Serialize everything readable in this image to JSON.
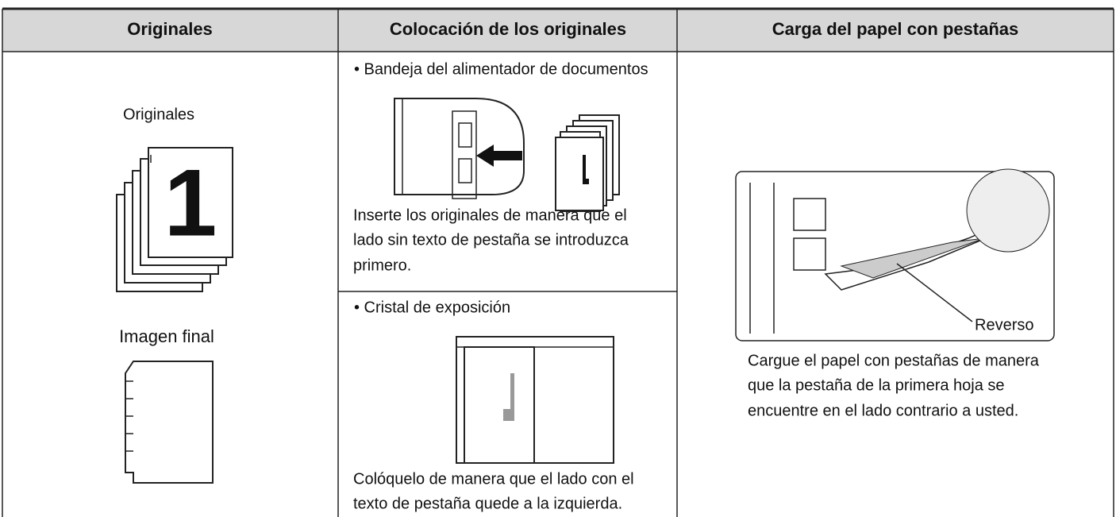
{
  "table": {
    "header": [
      "Originales",
      "Colocación de los originales",
      "Carga del papel con pestañas"
    ],
    "originals": {
      "label": "Originales",
      "page_number": "1",
      "final_label": "Imagen final"
    },
    "placement": [
      {
        "heading": "• Bandeja del alimentador de documentos",
        "lines": [
          "Inserte los originales de manera que el",
          "lado sin texto de pestaña se introduzca",
          "primero."
        ]
      },
      {
        "heading": "• Cristal de exposición",
        "lines": [
          "Colóquelo de manera que el lado con el",
          "texto de pestaña quede a la izquierda."
        ]
      }
    ],
    "loading": {
      "callout": "Reverso",
      "lines": [
        "Cargue el papel con pestañas de manera",
        "que la pestaña de la primera hoja se",
        "encuentre en el lado contrario a usted."
      ]
    }
  }
}
